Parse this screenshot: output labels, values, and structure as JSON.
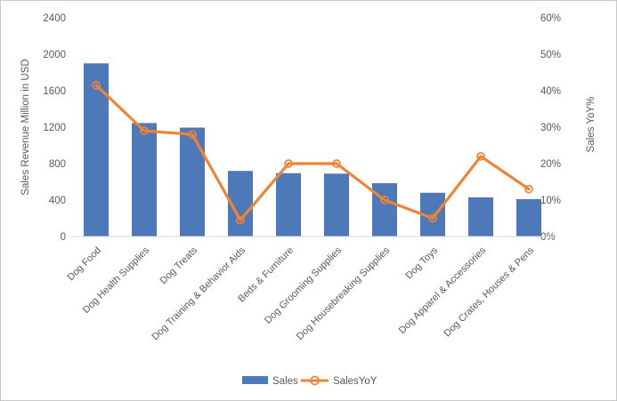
{
  "chart_data": {
    "type": "combo-bar-line",
    "title": "",
    "categories": [
      "Dog Food",
      "Dog Health Supplies",
      "Dog Treats",
      "Dog Training & Behavior Aids",
      "Beds & Furniture",
      "Dog Grooming Supplies",
      "Dog Housebreaking Supplies",
      "Dog Toys",
      "Dog Apparel & Accessories",
      "Dog Crates, Houses & Pens"
    ],
    "series": [
      {
        "name": "Sales",
        "type": "bar",
        "axis": "left",
        "color": "#4e79b9",
        "values": [
          1900,
          1245,
          1195,
          720,
          695,
          690,
          585,
          480,
          430,
          410
        ]
      },
      {
        "name": "SalesYoY",
        "type": "line",
        "axis": "right",
        "color": "#ee8434",
        "marker": "open-circle",
        "values": [
          41.5,
          29,
          28,
          4.5,
          20,
          20,
          10,
          5,
          22,
          13
        ]
      }
    ],
    "left_axis": {
      "title": "Sales Revenue Million in USD",
      "min": 0,
      "max": 2400,
      "step": 400,
      "tick_labels": [
        "0",
        "400",
        "800",
        "1200",
        "1600",
        "2000",
        "2400"
      ]
    },
    "right_axis": {
      "title": "Sales YoY%",
      "min": 0,
      "max": 60,
      "step": 10,
      "tick_labels": [
        "0%",
        "10%",
        "20%",
        "30%",
        "40%",
        "50%",
        "60%"
      ]
    },
    "x_axis": {
      "label_rotation_deg": 45
    },
    "legend": {
      "position": "bottom",
      "items": [
        {
          "label": "Sales",
          "swatch": "bar",
          "color": "#4e79b9"
        },
        {
          "label": "SalesYoY",
          "swatch": "line-marker",
          "color": "#ee8434"
        }
      ]
    },
    "grid": false,
    "colors": {
      "axis_line": "#d9d9d9",
      "axis_text": "#595959",
      "frame_border": "#c9c9c9",
      "background": "#ffffff"
    }
  }
}
